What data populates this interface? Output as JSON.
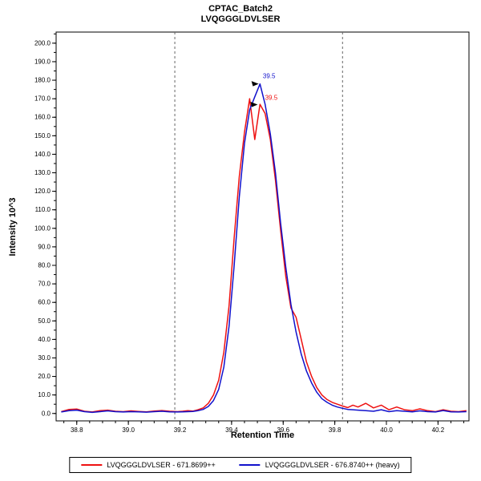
{
  "chart_data": {
    "type": "line",
    "title": "CPTAC_Batch2",
    "subtitle": "LVQGGGLDVLSER",
    "xlabel": "Retention Time",
    "ylabel": "Intensity 10^3",
    "xlim": [
      38.72,
      40.32
    ],
    "ylim": [
      -4,
      206
    ],
    "x_ticks": [
      38.8,
      39.0,
      39.2,
      39.4,
      39.6,
      39.8,
      40.0,
      40.2
    ],
    "x_tick_labels": [
      "38.8",
      "39.0",
      "39.2",
      "39.4",
      "39.6",
      "39.8",
      "40.0",
      "40.2"
    ],
    "x_minor_step": 0.05,
    "y_ticks": [
      0,
      10,
      20,
      30,
      40,
      50,
      60,
      70,
      80,
      90,
      100,
      110,
      120,
      130,
      140,
      150,
      160,
      170,
      180,
      190,
      200
    ],
    "y_tick_labels": [
      "0.0",
      "10.0",
      "20.0",
      "30.0",
      "40.0",
      "50.0",
      "60.0",
      "70.0",
      "80.0",
      "90.0",
      "100.0",
      "110.0",
      "120.0",
      "130.0",
      "140.0",
      "150.0",
      "160.0",
      "170.0",
      "180.0",
      "190.0",
      "200.0"
    ],
    "y_minor_step": 5,
    "grid": false,
    "legend_position": "bottom",
    "boundaries": [
      39.18,
      39.83
    ],
    "boundary_color": "#666666",
    "x": [
      38.74,
      38.77,
      38.8,
      38.83,
      38.86,
      38.89,
      38.92,
      38.95,
      38.98,
      39.01,
      39.04,
      39.07,
      39.1,
      39.13,
      39.16,
      39.19,
      39.21,
      39.23,
      39.25,
      39.27,
      39.29,
      39.31,
      39.33,
      39.35,
      39.37,
      39.39,
      39.41,
      39.43,
      39.45,
      39.47,
      39.49,
      39.51,
      39.53,
      39.55,
      39.57,
      39.59,
      39.61,
      39.63,
      39.65,
      39.67,
      39.69,
      39.71,
      39.73,
      39.75,
      39.77,
      39.79,
      39.81,
      39.83,
      39.85,
      39.87,
      39.89,
      39.92,
      39.95,
      39.98,
      40.01,
      40.04,
      40.07,
      40.1,
      40.13,
      40.16,
      40.19,
      40.22,
      40.25,
      40.28,
      40.31
    ],
    "series": [
      {
        "name": "LVQGGGLDVLSER - 671.8699++",
        "color": "#ee1111",
        "values": [
          1.0,
          2.2,
          2.4,
          1.2,
          0.8,
          1.5,
          1.8,
          1.2,
          1.0,
          1.4,
          1.1,
          0.9,
          1.3,
          1.6,
          1.2,
          1.0,
          1.2,
          1.5,
          1.3,
          2.0,
          3.0,
          5.5,
          10.0,
          18.0,
          33.0,
          58.0,
          95.0,
          128.0,
          152.0,
          170.0,
          148.0,
          167.0,
          162.0,
          148.0,
          126.0,
          99.0,
          74.0,
          57.0,
          52.0,
          40.0,
          28.0,
          20.0,
          14.0,
          10.0,
          7.5,
          6.0,
          5.0,
          4.0,
          3.2,
          4.5,
          3.5,
          5.5,
          3.0,
          4.5,
          2.0,
          3.5,
          2.0,
          1.5,
          2.5,
          1.5,
          1.0,
          2.0,
          1.2,
          1.0,
          1.5
        ]
      },
      {
        "name": "LVQGGGLDVLSER - 676.8740++ (heavy)",
        "color": "#1111cc",
        "values": [
          0.8,
          1.5,
          1.8,
          1.0,
          0.6,
          1.0,
          1.4,
          1.0,
          0.8,
          1.0,
          0.9,
          0.7,
          1.0,
          1.2,
          0.9,
          0.8,
          0.9,
          1.0,
          1.1,
          1.5,
          2.2,
          3.8,
          7.0,
          13.0,
          25.0,
          47.0,
          80.0,
          117.0,
          146.0,
          164.0,
          171.0,
          178.0,
          167.0,
          151.0,
          130.0,
          103.0,
          79.0,
          59.0,
          44.0,
          32.0,
          23.0,
          16.5,
          11.5,
          8.0,
          6.0,
          4.5,
          3.5,
          2.8,
          2.2,
          2.0,
          1.8,
          1.5,
          1.2,
          2.0,
          1.0,
          1.5,
          1.2,
          0.9,
          1.4,
          1.0,
          0.8,
          1.6,
          0.9,
          0.8,
          1.0
        ]
      }
    ],
    "annotations": [
      {
        "text": "39.5",
        "color": "#1111cc",
        "x": 39.505,
        "y": 178,
        "text_dx": 13,
        "text_dy": -7,
        "arrow_dx": 0,
        "arrow_dy": 0
      },
      {
        "text": "39.5",
        "color": "#ee1111",
        "x": 39.47,
        "y": 169,
        "text_dx": 27,
        "text_dy": -1,
        "arrow_dx": 10,
        "arrow_dy": 5
      }
    ]
  },
  "legend": {
    "items": [
      {
        "label": "LVQGGGLDVLSER - 671.8699++"
      },
      {
        "label": "LVQGGGLDVLSER - 676.8740++ (heavy)"
      }
    ]
  }
}
